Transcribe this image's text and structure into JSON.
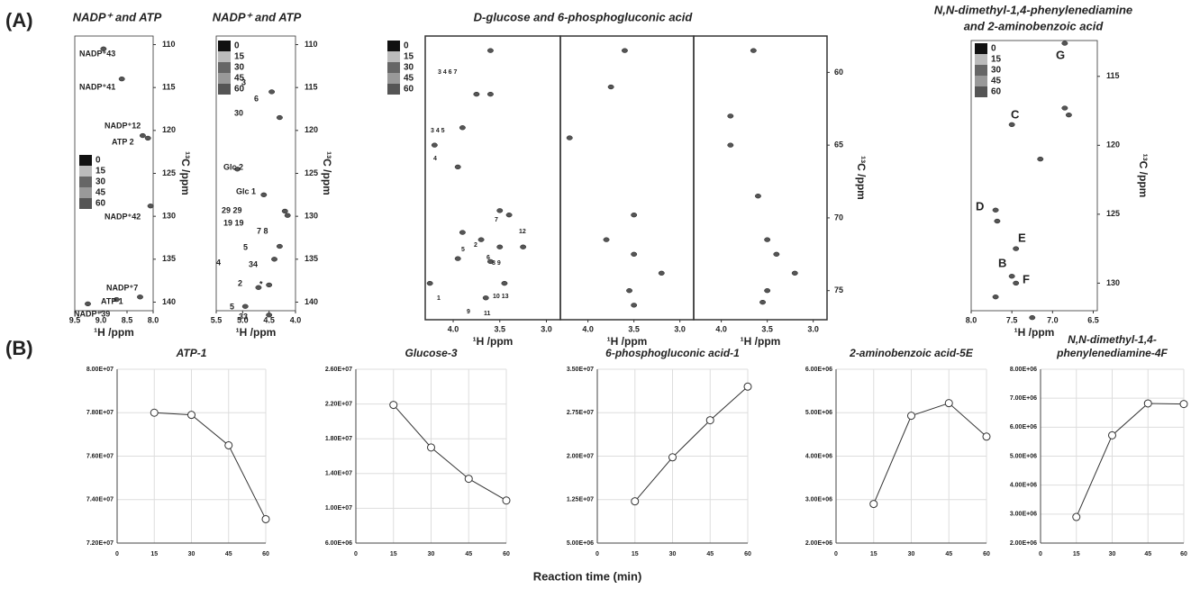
{
  "panel_a": {
    "label": "(A)",
    "spectra": [
      {
        "title": [
          "NADP⁺ and ATP"
        ],
        "xlabel": "¹H /ppm",
        "ylabel": "¹³C /ppm",
        "xlim": [
          9.5,
          8.0
        ],
        "ylim": [
          109,
          141
        ],
        "xticks": [
          9.5,
          {
            "value": 9,
            "label": "9.0"
          },
          8.5,
          {
            "value": 8,
            "label": "8.0"
          }
        ],
        "yticks": [
          110,
          115,
          120,
          125,
          130,
          135,
          140
        ],
        "legend": [
          0,
          15,
          30,
          45,
          60
        ],
        "annotations": [
          "NADP⁺43",
          "NADP⁺41",
          "NADP⁺12",
          "ATP 2",
          "NADP⁺42",
          "NADP⁺7",
          "ATP 1",
          "NADP⁺39"
        ],
        "subpanels": [
          {
            "peaks_x": [
              8.95,
              8.6,
              8.2,
              8.1,
              8.05,
              8.7,
              8.25,
              9.25
            ],
            "peaks_y": [
              110.5,
              114,
              120.6,
              120.9,
              128.8,
              139.7,
              139.4,
              140.2
            ]
          }
        ]
      },
      {
        "title": [
          "NADP⁺ and ATP"
        ],
        "xlabel": "¹H /ppm",
        "ylabel": "¹³C /ppm",
        "xlim": [
          5.5,
          4.0
        ],
        "ylim": [
          109,
          141
        ],
        "xticks": [
          5.5,
          {
            "value": 5,
            "label": "5.0"
          },
          4.5,
          {
            "value": 4,
            "label": "4.0"
          }
        ],
        "yticks": [
          110,
          115,
          120,
          125,
          130,
          135,
          140
        ],
        "legend": [
          0,
          15,
          30,
          45,
          60
        ],
        "annotations": [
          "3",
          "6",
          "30",
          "Glc 2",
          "Glc 1",
          "29 29",
          "19 19",
          "7 8",
          "5",
          "4",
          "34",
          "2",
          "*",
          "5",
          "33"
        ],
        "subpanels": [
          {
            "peaks_x": [
              4.45,
              4.3,
              5.1,
              4.6,
              4.2,
              4.15,
              4.3,
              4.4,
              4.5,
              4.7,
              4.95,
              4.5
            ],
            "peaks_y": [
              115.5,
              118.5,
              124.5,
              127.5,
              129.4,
              129.9,
              133.5,
              135,
              138,
              138.3,
              140.5,
              141.5
            ]
          }
        ]
      },
      {
        "title": [
          "D-glucose and 6-phosphogluconic acid"
        ],
        "xlabel": "¹H /ppm",
        "ylabel": "¹³C /ppm",
        "xlim": [
          4.3,
          2.85
        ],
        "ylim": [
          57.5,
          77
        ],
        "xticks": [
          {
            "value": 4,
            "label": "4.0"
          },
          3.5,
          {
            "value": 3,
            "label": "3.0"
          }
        ],
        "yticks": [
          60,
          65,
          70,
          75
        ],
        "legend": [
          0,
          15,
          30,
          45,
          60
        ],
        "annotations": [
          "3 4 6 7",
          "3 4 5",
          "4",
          "7",
          "12",
          "2",
          "5",
          "6",
          "8 9",
          "1",
          "10 13",
          "9",
          "11"
        ],
        "subpanels": [
          {
            "peaks_x": [
              3.6,
              3.75,
              3.6,
              3.9,
              4.2,
              3.95,
              3.5,
              3.4,
              3.9,
              3.7,
              3.5,
              3.95,
              3.6,
              3.25,
              4.25,
              3.45,
              3.65
            ],
            "peaks_y": [
              58.5,
              61.5,
              61.5,
              63.8,
              65,
              66.5,
              69.5,
              69.8,
              71,
              71.5,
              72,
              72.8,
              73,
              72,
              74.5,
              74.5,
              75.5
            ]
          },
          {
            "peaks_x": [
              3.6,
              3.75,
              4.2,
              3.5,
              3.8,
              3.5,
              3.2,
              3.5,
              3.55
            ],
            "peaks_y": [
              58.5,
              61,
              64.5,
              69.8,
              71.5,
              72.5,
              73.8,
              76,
              75
            ]
          },
          {
            "peaks_x": [
              3.65,
              3.9,
              3.9,
              3.6,
              3.5,
              3.4,
              3.2,
              3.5,
              3.55
            ],
            "peaks_y": [
              58.5,
              63,
              65,
              68.5,
              71.5,
              72.5,
              73.8,
              75,
              75.8
            ]
          }
        ]
      },
      {
        "title": [
          "N,N-dimethyl-1,4-phenylenediamine",
          "and 2-aminobenzoic acid"
        ],
        "xlabel": "¹H /ppm",
        "ylabel": "¹³C /ppm",
        "xlim": [
          8.0,
          6.45
        ],
        "ylim": [
          112.4,
          132
        ],
        "xticks": [
          {
            "value": 8,
            "label": "8.0"
          },
          7.5,
          {
            "value": 7,
            "label": "7.0"
          },
          6.5
        ],
        "yticks": [
          115,
          120,
          125,
          130
        ],
        "legend": [
          0,
          15,
          30,
          45,
          60
        ],
        "annotations": [
          "G",
          "C",
          "D",
          "E",
          "B",
          "F"
        ],
        "subpanels": [
          {
            "peaks_x": [
              6.85,
              6.85,
              6.8,
              7.5,
              7.15,
              7.7,
              7.68,
              7.45,
              7.5,
              7.45,
              7.7,
              7.25
            ],
            "peaks_y": [
              112.6,
              117.3,
              117.8,
              118.5,
              121,
              124.7,
              125.5,
              127.5,
              129.5,
              130,
              131,
              132.5
            ]
          }
        ]
      }
    ]
  },
  "panel_b": {
    "label": "(B)",
    "xlabel": "Reaction time (min)",
    "charts": [
      {
        "type": "line",
        "title": [
          "ATP-1"
        ],
        "x": [
          15,
          30,
          45,
          60
        ],
        "values": [
          78000000,
          77900000,
          76500000,
          73100000
        ],
        "xlim": [
          0,
          60
        ],
        "xticks": [
          0,
          15,
          30,
          45,
          60
        ],
        "ylim": [
          72000000,
          80000000
        ],
        "yticks": [
          {
            "value": 72000000,
            "label": "7.20E+07"
          },
          {
            "value": 74000000,
            "label": "7.40E+07"
          },
          {
            "value": 76000000,
            "label": "7.60E+07"
          },
          {
            "value": 78000000,
            "label": "7.80E+07"
          },
          {
            "value": 80000000,
            "label": "8.00E+07"
          }
        ]
      },
      {
        "type": "line",
        "title": [
          "Glucose-3"
        ],
        "x": [
          15,
          30,
          45,
          60
        ],
        "values": [
          21900000,
          17000000,
          13400000,
          10900000
        ],
        "xlim": [
          0,
          60
        ],
        "xticks": [
          0,
          15,
          30,
          45,
          60
        ],
        "ylim": [
          6000000,
          26000000
        ],
        "yticks": [
          {
            "value": 6000000,
            "label": "6.00E+06"
          },
          {
            "value": 10000000,
            "label": "1.00E+07"
          },
          {
            "value": 14000000,
            "label": "1.40E+07"
          },
          {
            "value": 18000000,
            "label": "1.80E+07"
          },
          {
            "value": 22000000,
            "label": "2.20E+07"
          },
          {
            "value": 26000000,
            "label": "2.60E+07"
          }
        ]
      },
      {
        "type": "line",
        "title": [
          "6-phosphogluconic acid-1"
        ],
        "x": [
          15,
          30,
          45,
          60
        ],
        "values": [
          12200000,
          19800000,
          26200000,
          32000000
        ],
        "xlim": [
          0,
          60
        ],
        "xticks": [
          0,
          15,
          30,
          45,
          60
        ],
        "ylim": [
          5000000,
          35000000
        ],
        "yticks": [
          {
            "value": 5000000,
            "label": "5.00E+06"
          },
          {
            "value": 12500000,
            "label": "1.25E+07"
          },
          {
            "value": 20000000,
            "label": "2.00E+07"
          },
          {
            "value": 27500000,
            "label": "2.75E+07"
          },
          {
            "value": 35000000,
            "label": "3.50E+07"
          }
        ]
      },
      {
        "type": "line",
        "title": [
          "2-aminobenzoic acid-5E"
        ],
        "x": [
          15,
          30,
          45,
          60
        ],
        "values": [
          2900000,
          4930000,
          5220000,
          4450000
        ],
        "xlim": [
          0,
          60
        ],
        "xticks": [
          0,
          15,
          30,
          45,
          60
        ],
        "ylim": [
          2000000,
          6000000
        ],
        "yticks": [
          {
            "value": 2000000,
            "label": "2.00E+06"
          },
          {
            "value": 3000000,
            "label": "3.00E+06"
          },
          {
            "value": 4000000,
            "label": "4.00E+06"
          },
          {
            "value": 5000000,
            "label": "5.00E+06"
          },
          {
            "value": 6000000,
            "label": "6.00E+06"
          }
        ]
      },
      {
        "type": "line",
        "title": [
          "N,N-dimethyl-1,4-",
          "phenylenediamine-4F"
        ],
        "x": [
          15,
          30,
          45,
          60
        ],
        "values": [
          2900000,
          5720000,
          6820000,
          6800000
        ],
        "xlim": [
          0,
          60
        ],
        "xticks": [
          0,
          15,
          30,
          45,
          60
        ],
        "ylim": [
          2000000,
          8000000
        ],
        "yticks": [
          {
            "value": 2000000,
            "label": "2.00E+06"
          },
          {
            "value": 3000000,
            "label": "3.00E+06"
          },
          {
            "value": 4000000,
            "label": "4.00E+06"
          },
          {
            "value": 5000000,
            "label": "5.00E+06"
          },
          {
            "value": 6000000,
            "label": "6.00E+06"
          },
          {
            "value": 7000000,
            "label": "7.00E+06"
          },
          {
            "value": 8000000,
            "label": "8.00E+06"
          }
        ]
      }
    ]
  }
}
